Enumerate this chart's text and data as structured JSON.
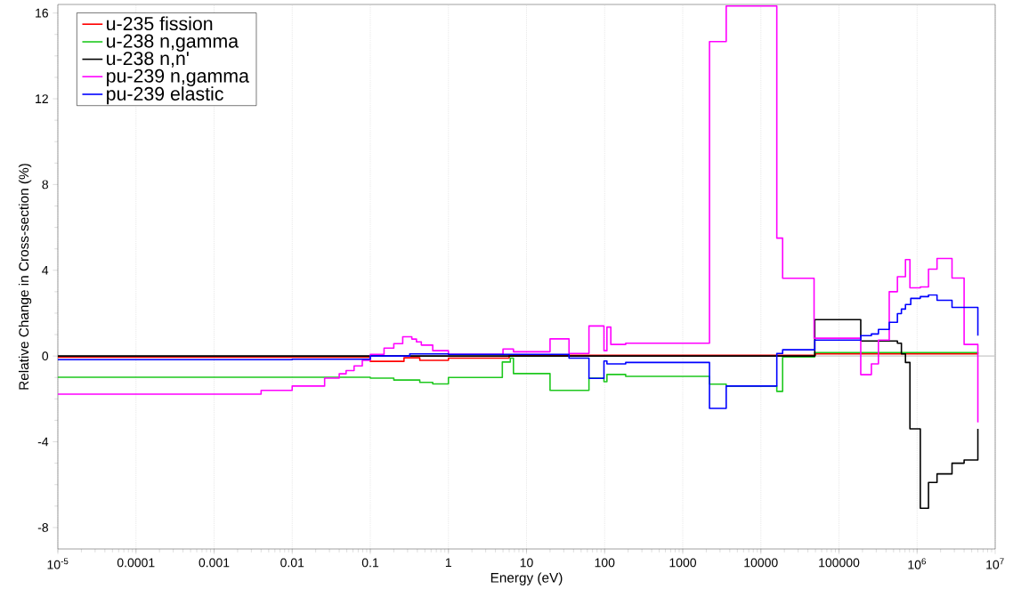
{
  "chart_data": {
    "type": "step",
    "xlabel": "Energy (eV)",
    "ylabel": "Relative Change in Cross-section (%)",
    "log": "x",
    "grid": "x",
    "legend": "top left",
    "xlim": [
      1e-05,
      10000000.0
    ],
    "ylim": [
      -9,
      16.4
    ],
    "xticks": [
      {
        "value": 1e-05,
        "label": "10$^{-5}$"
      },
      0.0001,
      0.001,
      0.01,
      0.1,
      1,
      10,
      100,
      1000,
      10000,
      100000,
      {
        "value": 1000000.0,
        "label": "10$^{6}$"
      },
      {
        "value": 10000000.0,
        "label": "10$^{7}$"
      }
    ],
    "yticks": [
      -8,
      -4,
      0,
      4,
      8,
      12,
      16
    ],
    "ref_lines": [
      {
        "axis": "y",
        "value": 0,
        "color": "#c8c8c8"
      }
    ],
    "series": [
      {
        "name": "u-235 fission",
        "color": "#ff0000",
        "x": [
          1e-05,
          0.025,
          0.1,
          0.27,
          0.43,
          1,
          6,
          50000,
          6000000
        ],
        "values": [
          -0.05,
          -0.05,
          -0.25,
          -0.08,
          -0.2,
          -0.1,
          0.04,
          0.1,
          0.1
        ]
      },
      {
        "name": "u-238 n,gamma",
        "color": "#1ec81e",
        "x": [
          1e-05,
          0.04,
          0.1,
          0.2,
          0.43,
          0.63,
          1,
          4.9,
          6.2,
          6.8,
          20,
          63,
          98,
          107,
          186,
          2200,
          3600,
          16000,
          19000,
          49000,
          6000000
        ],
        "values": [
          -0.99,
          -0.99,
          -1.03,
          -1.12,
          -1.23,
          -1.3,
          -1.0,
          -0.28,
          -0.1,
          -0.82,
          -1.6,
          -1.03,
          -1.2,
          -0.86,
          -0.95,
          -1.31,
          -1.4,
          -1.65,
          -0.04,
          0.16,
          0.1
        ]
      },
      {
        "name": "u-238 n,n'",
        "color": "#000000",
        "x": [
          1e-05,
          49000,
          190000,
          560000,
          630000,
          710000,
          810000,
          1100000,
          1400000,
          1800000,
          2800000,
          4000000,
          6000000
        ],
        "values": [
          0,
          1.7,
          0.7,
          0.6,
          0.1,
          -0.3,
          -3.4,
          -7.1,
          -5.9,
          -5.5,
          -5.0,
          -4.85,
          -3.4
        ]
      },
      {
        "name": "pu-239 n,gamma",
        "color": "#ff00ff",
        "x": [
          1e-05,
          0.004,
          0.01,
          0.026,
          0.04,
          0.049,
          0.062,
          0.079,
          0.1,
          0.15,
          0.2,
          0.26,
          0.34,
          0.39,
          0.45,
          0.63,
          1,
          5,
          6.8,
          20,
          35,
          63,
          98,
          107,
          120,
          186,
          2200,
          3600,
          16000,
          19000,
          48000,
          190000,
          260000,
          320000,
          440000,
          560000,
          710000,
          810000,
          1100000,
          1400000,
          1800000,
          2800000,
          4000000,
          6000000
        ],
        "values": [
          -1.78,
          -1.6,
          -1.4,
          -1.03,
          -0.83,
          -0.68,
          -0.46,
          -0.2,
          0.08,
          0.37,
          0.58,
          0.9,
          0.79,
          0.66,
          0.51,
          0.25,
          0.08,
          0.33,
          0.2,
          0.8,
          0.12,
          1.4,
          0.25,
          1.35,
          0.54,
          0.6,
          14.67,
          16.33,
          5.5,
          3.63,
          0.83,
          -0.87,
          -0.37,
          0.74,
          3.0,
          3.7,
          4.5,
          3.18,
          3.22,
          4.05,
          4.55,
          3.64,
          0.54,
          -3.1
        ]
      },
      {
        "name": "pu-239 elastic",
        "color": "#0000ff",
        "x": [
          1e-05,
          0.01,
          0.1,
          0.32,
          1,
          35,
          63,
          98,
          107,
          186,
          2200,
          3600,
          16000,
          19000,
          49000,
          190000,
          260000,
          320000,
          440000,
          560000,
          630000,
          710000,
          830000,
          1100000,
          1400000,
          1800000,
          2800000,
          6000000
        ],
        "values": [
          -0.17,
          -0.15,
          0,
          0.1,
          0.08,
          -0.1,
          -1.04,
          -0.23,
          -0.37,
          -0.3,
          -2.44,
          -1.4,
          0.12,
          0.29,
          0.74,
          0.95,
          1.03,
          1.24,
          1.57,
          1.98,
          2.19,
          2.4,
          2.69,
          2.77,
          2.85,
          2.6,
          2.27,
          0.95
        ]
      }
    ]
  }
}
